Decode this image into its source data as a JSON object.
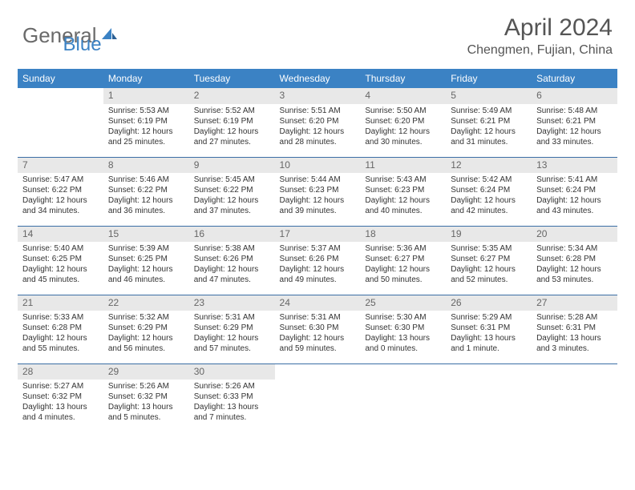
{
  "brand": {
    "part1": "General",
    "part2": "Blue"
  },
  "title": "April 2024",
  "location": "Chengmen, Fujian, China",
  "colors": {
    "header_bg": "#3b82c4",
    "header_text": "#ffffff",
    "daynum_bg": "#e8e8e8",
    "daynum_text": "#666666",
    "rule": "#3b6ea5",
    "body_text": "#333333",
    "title_text": "#555555"
  },
  "weekdays": [
    "Sunday",
    "Monday",
    "Tuesday",
    "Wednesday",
    "Thursday",
    "Friday",
    "Saturday"
  ],
  "labels": {
    "sunrise": "Sunrise:",
    "sunset": "Sunset:",
    "daylight": "Daylight:"
  },
  "first_weekday_index": 1,
  "days": [
    {
      "n": 1,
      "sunrise": "5:53 AM",
      "sunset": "6:19 PM",
      "daylight": "12 hours and 25 minutes."
    },
    {
      "n": 2,
      "sunrise": "5:52 AM",
      "sunset": "6:19 PM",
      "daylight": "12 hours and 27 minutes."
    },
    {
      "n": 3,
      "sunrise": "5:51 AM",
      "sunset": "6:20 PM",
      "daylight": "12 hours and 28 minutes."
    },
    {
      "n": 4,
      "sunrise": "5:50 AM",
      "sunset": "6:20 PM",
      "daylight": "12 hours and 30 minutes."
    },
    {
      "n": 5,
      "sunrise": "5:49 AM",
      "sunset": "6:21 PM",
      "daylight": "12 hours and 31 minutes."
    },
    {
      "n": 6,
      "sunrise": "5:48 AM",
      "sunset": "6:21 PM",
      "daylight": "12 hours and 33 minutes."
    },
    {
      "n": 7,
      "sunrise": "5:47 AM",
      "sunset": "6:22 PM",
      "daylight": "12 hours and 34 minutes."
    },
    {
      "n": 8,
      "sunrise": "5:46 AM",
      "sunset": "6:22 PM",
      "daylight": "12 hours and 36 minutes."
    },
    {
      "n": 9,
      "sunrise": "5:45 AM",
      "sunset": "6:22 PM",
      "daylight": "12 hours and 37 minutes."
    },
    {
      "n": 10,
      "sunrise": "5:44 AM",
      "sunset": "6:23 PM",
      "daylight": "12 hours and 39 minutes."
    },
    {
      "n": 11,
      "sunrise": "5:43 AM",
      "sunset": "6:23 PM",
      "daylight": "12 hours and 40 minutes."
    },
    {
      "n": 12,
      "sunrise": "5:42 AM",
      "sunset": "6:24 PM",
      "daylight": "12 hours and 42 minutes."
    },
    {
      "n": 13,
      "sunrise": "5:41 AM",
      "sunset": "6:24 PM",
      "daylight": "12 hours and 43 minutes."
    },
    {
      "n": 14,
      "sunrise": "5:40 AM",
      "sunset": "6:25 PM",
      "daylight": "12 hours and 45 minutes."
    },
    {
      "n": 15,
      "sunrise": "5:39 AM",
      "sunset": "6:25 PM",
      "daylight": "12 hours and 46 minutes."
    },
    {
      "n": 16,
      "sunrise": "5:38 AM",
      "sunset": "6:26 PM",
      "daylight": "12 hours and 47 minutes."
    },
    {
      "n": 17,
      "sunrise": "5:37 AM",
      "sunset": "6:26 PM",
      "daylight": "12 hours and 49 minutes."
    },
    {
      "n": 18,
      "sunrise": "5:36 AM",
      "sunset": "6:27 PM",
      "daylight": "12 hours and 50 minutes."
    },
    {
      "n": 19,
      "sunrise": "5:35 AM",
      "sunset": "6:27 PM",
      "daylight": "12 hours and 52 minutes."
    },
    {
      "n": 20,
      "sunrise": "5:34 AM",
      "sunset": "6:28 PM",
      "daylight": "12 hours and 53 minutes."
    },
    {
      "n": 21,
      "sunrise": "5:33 AM",
      "sunset": "6:28 PM",
      "daylight": "12 hours and 55 minutes."
    },
    {
      "n": 22,
      "sunrise": "5:32 AM",
      "sunset": "6:29 PM",
      "daylight": "12 hours and 56 minutes."
    },
    {
      "n": 23,
      "sunrise": "5:31 AM",
      "sunset": "6:29 PM",
      "daylight": "12 hours and 57 minutes."
    },
    {
      "n": 24,
      "sunrise": "5:31 AM",
      "sunset": "6:30 PM",
      "daylight": "12 hours and 59 minutes."
    },
    {
      "n": 25,
      "sunrise": "5:30 AM",
      "sunset": "6:30 PM",
      "daylight": "13 hours and 0 minutes."
    },
    {
      "n": 26,
      "sunrise": "5:29 AM",
      "sunset": "6:31 PM",
      "daylight": "13 hours and 1 minute."
    },
    {
      "n": 27,
      "sunrise": "5:28 AM",
      "sunset": "6:31 PM",
      "daylight": "13 hours and 3 minutes."
    },
    {
      "n": 28,
      "sunrise": "5:27 AM",
      "sunset": "6:32 PM",
      "daylight": "13 hours and 4 minutes."
    },
    {
      "n": 29,
      "sunrise": "5:26 AM",
      "sunset": "6:32 PM",
      "daylight": "13 hours and 5 minutes."
    },
    {
      "n": 30,
      "sunrise": "5:26 AM",
      "sunset": "6:33 PM",
      "daylight": "13 hours and 7 minutes."
    }
  ]
}
